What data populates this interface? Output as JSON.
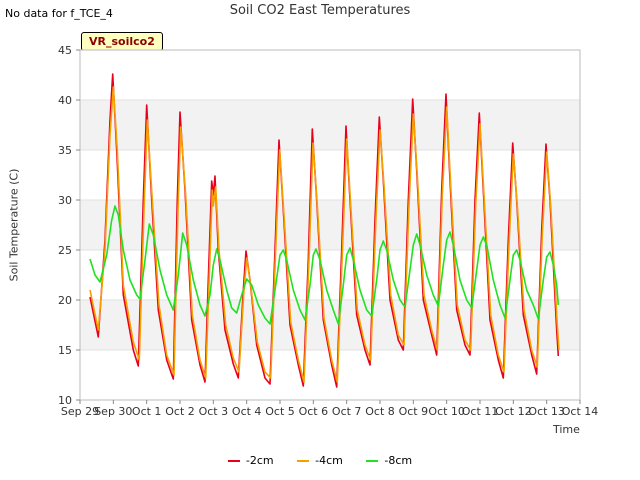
{
  "header": {
    "nodata": "No data for f_TCE_4",
    "title": "Soil CO2 East Temperatures",
    "badge": "VR_soilco2"
  },
  "chart_data": {
    "type": "line",
    "title": "Soil CO2 East Temperatures",
    "xlabel": "Time",
    "ylabel": "Soil Temperature (C)",
    "xlim": [
      0,
      15
    ],
    "ylim": [
      10,
      45
    ],
    "yticks": [
      10,
      15,
      20,
      25,
      30,
      35,
      40,
      45
    ],
    "xticks": [
      {
        "t": 0,
        "label": "Sep 29"
      },
      {
        "t": 1,
        "label": "Sep 30"
      },
      {
        "t": 2,
        "label": "Oct 1"
      },
      {
        "t": 3,
        "label": "Oct 2"
      },
      {
        "t": 4,
        "label": "Oct 3"
      },
      {
        "t": 5,
        "label": "Oct 4"
      },
      {
        "t": 6,
        "label": "Oct 5"
      },
      {
        "t": 7,
        "label": "Oct 6"
      },
      {
        "t": 8,
        "label": "Oct 7"
      },
      {
        "t": 9,
        "label": "Oct 8"
      },
      {
        "t": 10,
        "label": "Oct 9"
      },
      {
        "t": 11,
        "label": "Oct 10"
      },
      {
        "t": 12,
        "label": "Oct 11"
      },
      {
        "t": 13,
        "label": "Oct 12"
      },
      {
        "t": 14,
        "label": "Oct 13"
      },
      {
        "t": 15,
        "label": "Oct 14"
      }
    ],
    "shaded_bands": [
      [
        15,
        20
      ],
      [
        25,
        30
      ],
      [
        35,
        40
      ]
    ],
    "series": [
      {
        "name": "-2cm",
        "color": "#e8001c",
        "points": [
          [
            0.3,
            20.3
          ],
          [
            0.55,
            16.3
          ],
          [
            0.75,
            26.0
          ],
          [
            0.9,
            38.0
          ],
          [
            0.98,
            42.6
          ],
          [
            1.1,
            35.0
          ],
          [
            1.3,
            20.5
          ],
          [
            1.6,
            15.0
          ],
          [
            1.75,
            13.4
          ],
          [
            1.9,
            30.0
          ],
          [
            2.0,
            39.5
          ],
          [
            2.15,
            30.0
          ],
          [
            2.35,
            19.0
          ],
          [
            2.6,
            14.0
          ],
          [
            2.8,
            12.1
          ],
          [
            2.92,
            30.0
          ],
          [
            3.0,
            38.8
          ],
          [
            3.15,
            31.0
          ],
          [
            3.35,
            18.0
          ],
          [
            3.6,
            13.5
          ],
          [
            3.75,
            11.8
          ],
          [
            3.85,
            22.0
          ],
          [
            3.95,
            31.9
          ],
          [
            4.0,
            30.5
          ],
          [
            4.05,
            32.4
          ],
          [
            4.15,
            25.0
          ],
          [
            4.35,
            17.0
          ],
          [
            4.6,
            13.6
          ],
          [
            4.75,
            12.2
          ],
          [
            4.9,
            21.0
          ],
          [
            4.98,
            24.9
          ],
          [
            5.1,
            22.0
          ],
          [
            5.3,
            15.5
          ],
          [
            5.55,
            12.2
          ],
          [
            5.7,
            11.6
          ],
          [
            5.85,
            25.0
          ],
          [
            5.97,
            36.0
          ],
          [
            6.1,
            29.0
          ],
          [
            6.3,
            17.5
          ],
          [
            6.55,
            13.5
          ],
          [
            6.7,
            11.4
          ],
          [
            6.85,
            24.0
          ],
          [
            6.97,
            37.1
          ],
          [
            7.1,
            30.0
          ],
          [
            7.3,
            18.0
          ],
          [
            7.55,
            13.5
          ],
          [
            7.7,
            11.3
          ],
          [
            7.85,
            25.0
          ],
          [
            7.98,
            37.4
          ],
          [
            8.1,
            30.0
          ],
          [
            8.3,
            18.5
          ],
          [
            8.55,
            15.0
          ],
          [
            8.7,
            13.5
          ],
          [
            8.85,
            28.0
          ],
          [
            8.98,
            38.3
          ],
          [
            9.1,
            32.0
          ],
          [
            9.3,
            20.0
          ],
          [
            9.55,
            16.0
          ],
          [
            9.7,
            15.0
          ],
          [
            9.85,
            30.0
          ],
          [
            9.98,
            40.1
          ],
          [
            10.1,
            33.0
          ],
          [
            10.3,
            20.0
          ],
          [
            10.55,
            16.5
          ],
          [
            10.7,
            14.5
          ],
          [
            10.85,
            31.0
          ],
          [
            10.98,
            40.6
          ],
          [
            11.1,
            32.0
          ],
          [
            11.3,
            19.0
          ],
          [
            11.55,
            15.5
          ],
          [
            11.7,
            14.5
          ],
          [
            11.85,
            30.0
          ],
          [
            11.98,
            38.7
          ],
          [
            12.1,
            31.0
          ],
          [
            12.3,
            18.0
          ],
          [
            12.55,
            14.0
          ],
          [
            12.7,
            12.2
          ],
          [
            12.85,
            26.0
          ],
          [
            12.98,
            35.7
          ],
          [
            13.1,
            30.0
          ],
          [
            13.3,
            18.5
          ],
          [
            13.55,
            14.5
          ],
          [
            13.7,
            12.6
          ],
          [
            13.85,
            27.0
          ],
          [
            13.98,
            35.6
          ],
          [
            14.1,
            30.0
          ],
          [
            14.3,
            17.0
          ],
          [
            14.35,
            14.4
          ]
        ]
      },
      {
        "name": "-4cm",
        "color": "#f5a000",
        "points": [
          [
            0.3,
            21.0
          ],
          [
            0.55,
            17.0
          ],
          [
            0.75,
            25.0
          ],
          [
            0.9,
            36.5
          ],
          [
            1.0,
            41.3
          ],
          [
            1.12,
            35.0
          ],
          [
            1.3,
            21.5
          ],
          [
            1.6,
            15.8
          ],
          [
            1.78,
            14.0
          ],
          [
            1.92,
            29.0
          ],
          [
            2.02,
            38.0
          ],
          [
            2.17,
            30.0
          ],
          [
            2.37,
            19.5
          ],
          [
            2.6,
            14.5
          ],
          [
            2.82,
            12.5
          ],
          [
            2.94,
            29.0
          ],
          [
            3.02,
            37.3
          ],
          [
            3.17,
            30.5
          ],
          [
            3.37,
            18.5
          ],
          [
            3.6,
            14.0
          ],
          [
            3.77,
            12.2
          ],
          [
            3.87,
            21.5
          ],
          [
            3.97,
            31.0
          ],
          [
            4.0,
            29.4
          ],
          [
            4.07,
            31.3
          ],
          [
            4.17,
            25.0
          ],
          [
            4.37,
            17.5
          ],
          [
            4.6,
            14.2
          ],
          [
            4.77,
            12.8
          ],
          [
            4.92,
            21.0
          ],
          [
            5.0,
            24.2
          ],
          [
            5.12,
            21.5
          ],
          [
            5.32,
            15.8
          ],
          [
            5.55,
            12.8
          ],
          [
            5.72,
            12.2
          ],
          [
            5.87,
            25.0
          ],
          [
            5.99,
            35.0
          ],
          [
            6.12,
            28.5
          ],
          [
            6.32,
            17.8
          ],
          [
            6.55,
            14.0
          ],
          [
            6.72,
            11.8
          ],
          [
            6.87,
            24.0
          ],
          [
            6.99,
            35.7
          ],
          [
            7.12,
            29.5
          ],
          [
            7.32,
            18.2
          ],
          [
            7.55,
            14.0
          ],
          [
            7.72,
            11.8
          ],
          [
            7.87,
            24.5
          ],
          [
            8.0,
            36.1
          ],
          [
            8.12,
            29.5
          ],
          [
            8.32,
            19.0
          ],
          [
            8.55,
            15.5
          ],
          [
            8.72,
            14.0
          ],
          [
            8.87,
            27.5
          ],
          [
            9.0,
            37.0
          ],
          [
            9.12,
            31.5
          ],
          [
            9.32,
            20.5
          ],
          [
            9.55,
            16.5
          ],
          [
            9.72,
            15.5
          ],
          [
            9.87,
            29.5
          ],
          [
            10.0,
            38.6
          ],
          [
            10.12,
            32.5
          ],
          [
            10.32,
            20.5
          ],
          [
            10.55,
            17.0
          ],
          [
            10.72,
            15.0
          ],
          [
            10.87,
            30.5
          ],
          [
            11.0,
            39.3
          ],
          [
            11.12,
            31.5
          ],
          [
            11.32,
            19.5
          ],
          [
            11.55,
            16.0
          ],
          [
            11.72,
            15.0
          ],
          [
            11.87,
            29.5
          ],
          [
            12.0,
            37.6
          ],
          [
            12.12,
            30.5
          ],
          [
            12.32,
            18.5
          ],
          [
            12.55,
            14.5
          ],
          [
            12.72,
            12.8
          ],
          [
            12.87,
            25.5
          ],
          [
            13.0,
            34.6
          ],
          [
            13.12,
            29.5
          ],
          [
            13.32,
            19.0
          ],
          [
            13.55,
            15.0
          ],
          [
            13.72,
            13.3
          ],
          [
            13.87,
            26.5
          ],
          [
            14.0,
            34.8
          ],
          [
            14.12,
            29.5
          ],
          [
            14.32,
            17.5
          ],
          [
            14.37,
            15.0
          ]
        ]
      },
      {
        "name": "-8cm",
        "color": "#22e022",
        "points": [
          [
            0.3,
            24.1
          ],
          [
            0.45,
            22.5
          ],
          [
            0.6,
            21.8
          ],
          [
            0.8,
            24.5
          ],
          [
            0.95,
            28.0
          ],
          [
            1.05,
            29.4
          ],
          [
            1.15,
            28.5
          ],
          [
            1.3,
            25.0
          ],
          [
            1.5,
            22.0
          ],
          [
            1.7,
            20.5
          ],
          [
            1.8,
            20.1
          ],
          [
            1.95,
            24.0
          ],
          [
            2.08,
            27.6
          ],
          [
            2.2,
            26.5
          ],
          [
            2.4,
            23.0
          ],
          [
            2.6,
            20.5
          ],
          [
            2.8,
            19.0
          ],
          [
            2.95,
            22.5
          ],
          [
            3.08,
            26.7
          ],
          [
            3.2,
            25.5
          ],
          [
            3.4,
            22.0
          ],
          [
            3.6,
            19.5
          ],
          [
            3.75,
            18.4
          ],
          [
            3.9,
            20.5
          ],
          [
            4.0,
            23.5
          ],
          [
            4.1,
            25.1
          ],
          [
            4.2,
            24.0
          ],
          [
            4.4,
            21.0
          ],
          [
            4.55,
            19.2
          ],
          [
            4.7,
            18.7
          ],
          [
            4.85,
            20.5
          ],
          [
            5.0,
            22.1
          ],
          [
            5.15,
            21.5
          ],
          [
            5.35,
            19.5
          ],
          [
            5.55,
            18.2
          ],
          [
            5.7,
            17.6
          ],
          [
            5.85,
            21.0
          ],
          [
            6.0,
            24.5
          ],
          [
            6.1,
            25.0
          ],
          [
            6.2,
            24.0
          ],
          [
            6.4,
            21.0
          ],
          [
            6.6,
            19.0
          ],
          [
            6.75,
            18.0
          ],
          [
            6.9,
            21.5
          ],
          [
            7.0,
            24.5
          ],
          [
            7.08,
            25.1
          ],
          [
            7.2,
            24.0
          ],
          [
            7.4,
            21.0
          ],
          [
            7.6,
            19.0
          ],
          [
            7.75,
            17.6
          ],
          [
            7.9,
            21.5
          ],
          [
            8.0,
            24.5
          ],
          [
            8.1,
            25.2
          ],
          [
            8.2,
            24.0
          ],
          [
            8.4,
            21.0
          ],
          [
            8.6,
            19.0
          ],
          [
            8.75,
            18.4
          ],
          [
            8.9,
            22.0
          ],
          [
            9.0,
            25.0
          ],
          [
            9.1,
            25.9
          ],
          [
            9.2,
            25.0
          ],
          [
            9.4,
            22.0
          ],
          [
            9.6,
            20.0
          ],
          [
            9.75,
            19.3
          ],
          [
            9.9,
            23.0
          ],
          [
            10.0,
            25.5
          ],
          [
            10.1,
            26.6
          ],
          [
            10.2,
            25.5
          ],
          [
            10.4,
            22.5
          ],
          [
            10.6,
            20.5
          ],
          [
            10.75,
            19.4
          ],
          [
            10.9,
            23.5
          ],
          [
            11.0,
            26.0
          ],
          [
            11.1,
            26.8
          ],
          [
            11.2,
            25.5
          ],
          [
            11.4,
            22.0
          ],
          [
            11.6,
            20.0
          ],
          [
            11.75,
            19.2
          ],
          [
            11.9,
            23.0
          ],
          [
            12.0,
            25.5
          ],
          [
            12.1,
            26.3
          ],
          [
            12.2,
            25.5
          ],
          [
            12.4,
            22.0
          ],
          [
            12.6,
            19.5
          ],
          [
            12.75,
            18.2
          ],
          [
            12.9,
            22.0
          ],
          [
            13.0,
            24.5
          ],
          [
            13.1,
            25.0
          ],
          [
            13.2,
            24.0
          ],
          [
            13.4,
            21.0
          ],
          [
            13.6,
            19.5
          ],
          [
            13.75,
            18.1
          ],
          [
            13.9,
            22.0
          ],
          [
            14.0,
            24.3
          ],
          [
            14.1,
            24.8
          ],
          [
            14.2,
            23.5
          ],
          [
            14.3,
            21.5
          ],
          [
            14.35,
            19.5
          ]
        ]
      }
    ]
  }
}
